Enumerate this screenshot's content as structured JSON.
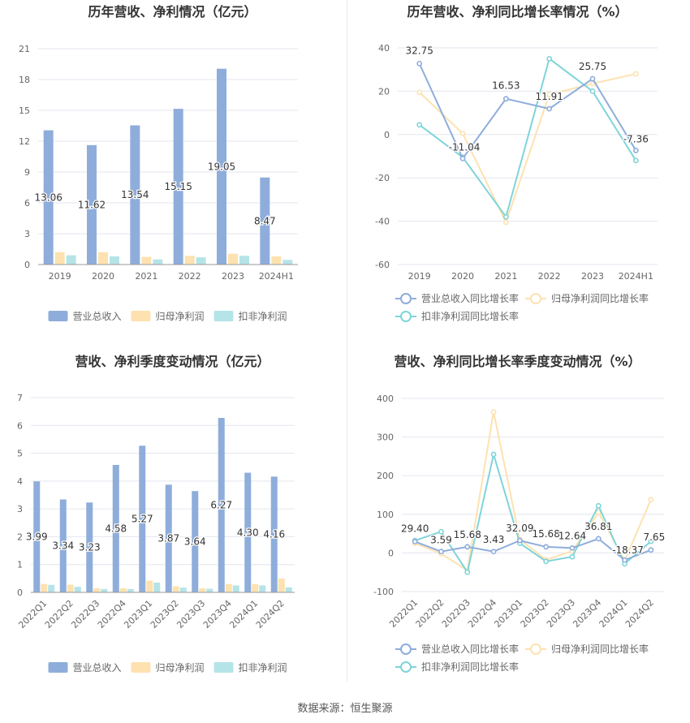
{
  "colors": {
    "revenue": "#8eaddb",
    "net_profit": "#fde2b0",
    "deducted_profit": "#b5e4e8",
    "revenue_line": "#8eaddb",
    "net_line": "#fde2b0",
    "deducted_line": "#7fd4d9",
    "grid": "#e3e6ef",
    "axis_text": "#666666",
    "title_text": "#333333"
  },
  "footer": {
    "source": "数据来源：恒生聚源"
  },
  "chart_data": [
    {
      "id": "annual-bars",
      "type": "bar",
      "title": "历年营收、净利情况（亿元）",
      "categories": [
        "2019",
        "2020",
        "2021",
        "2022",
        "2023",
        "2024H1"
      ],
      "ylim": [
        0,
        21
      ],
      "yticks": [
        0,
        3,
        6,
        9,
        12,
        15,
        18,
        21
      ],
      "grid": true,
      "legend": "bottom",
      "label_series": 0,
      "series": [
        {
          "name": "营业总收入",
          "values": [
            13.06,
            11.62,
            13.54,
            15.15,
            19.05,
            8.47
          ]
        },
        {
          "name": "归母净利润",
          "values": [
            1.2,
            1.2,
            0.75,
            0.85,
            1.05,
            0.8
          ]
        },
        {
          "name": "扣非净利润",
          "values": [
            0.9,
            0.8,
            0.5,
            0.7,
            0.85,
            0.45
          ]
        }
      ]
    },
    {
      "id": "annual-growth",
      "type": "line",
      "title": "历年营收、净利同比增长率情况（%）",
      "categories": [
        "2019",
        "2020",
        "2021",
        "2022",
        "2023",
        "2024H1"
      ],
      "ylim": [
        -60,
        40
      ],
      "yticks": [
        -60,
        -40,
        -20,
        0,
        20,
        40
      ],
      "grid": true,
      "legend": "bottom",
      "label_series": 0,
      "labels": [
        "32.75",
        "-11.04",
        "16.53",
        "11.91",
        "25.75",
        "-7.36"
      ],
      "series": [
        {
          "name": "营业总收入同比增长率",
          "values": [
            32.75,
            -11.04,
            16.53,
            11.91,
            25.75,
            -7.36
          ]
        },
        {
          "name": "归母净利润同比增长率",
          "values": [
            19.5,
            0.5,
            -40.5,
            18.5,
            23.5,
            28
          ]
        },
        {
          "name": "扣非净利润同比增长率",
          "values": [
            4.5,
            -10.5,
            -38,
            35,
            20,
            -12
          ]
        }
      ]
    },
    {
      "id": "quarterly-bars",
      "type": "bar",
      "title": "营收、净利季度变动情况（亿元）",
      "categories": [
        "2022Q1",
        "2022Q2",
        "2022Q3",
        "2022Q4",
        "2023Q1",
        "2023Q2",
        "2023Q3",
        "2023Q4",
        "2024Q1",
        "2024Q2"
      ],
      "ylim": [
        0,
        7
      ],
      "yticks": [
        0,
        1,
        2,
        3,
        4,
        5,
        6,
        7
      ],
      "grid": true,
      "legend": "bottom",
      "label_series": 0,
      "series": [
        {
          "name": "营业总收入",
          "values": [
            3.99,
            3.34,
            3.23,
            4.58,
            5.27,
            3.87,
            3.64,
            6.27,
            4.3,
            4.16
          ]
        },
        {
          "name": "归母净利润",
          "values": [
            0.3,
            0.28,
            0.15,
            0.15,
            0.42,
            0.22,
            0.15,
            0.3,
            0.3,
            0.5
          ]
        },
        {
          "name": "扣非净利润",
          "values": [
            0.27,
            0.2,
            0.12,
            0.12,
            0.35,
            0.17,
            0.13,
            0.25,
            0.25,
            0.18
          ]
        }
      ]
    },
    {
      "id": "quarterly-growth",
      "type": "line",
      "title": "营收、净利同比增长率季度变动情况（%）",
      "categories": [
        "2022Q1",
        "2022Q2",
        "2022Q3",
        "2022Q4",
        "2023Q1",
        "2023Q2",
        "2023Q3",
        "2023Q4",
        "2024Q1",
        "2024Q2"
      ],
      "ylim": [
        -100,
        400
      ],
      "yticks": [
        -100,
        0,
        100,
        200,
        300,
        400
      ],
      "grid": true,
      "legend": "bottom",
      "label_series": 0,
      "labels": [
        "29.40",
        "3.59",
        "15.68",
        "3.43",
        "32.09",
        "15.68",
        "12.64",
        "36.81",
        "-18.37",
        "7.65"
      ],
      "series": [
        {
          "name": "营业总收入同比增长率",
          "values": [
            29.4,
            3.59,
            15.68,
            3.43,
            32.09,
            15.68,
            12.64,
            36.81,
            -18.37,
            7.65
          ]
        },
        {
          "name": "归母净利润同比增长率",
          "values": [
            25,
            -2,
            -45,
            365,
            35,
            -18,
            5,
            105,
            -20,
            138
          ]
        },
        {
          "name": "扣非净利润同比增长率",
          "values": [
            32,
            55,
            -50,
            255,
            25,
            -22,
            -10,
            122,
            -28,
            30
          ]
        }
      ]
    }
  ]
}
